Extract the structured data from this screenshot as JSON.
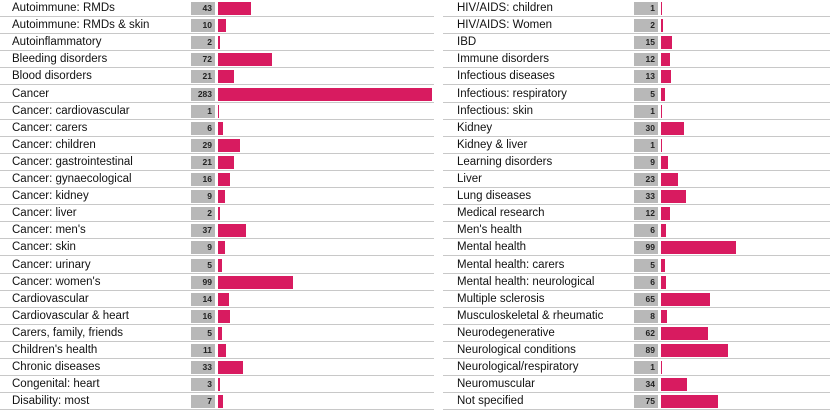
{
  "chart_data": {
    "type": "bar",
    "orientation": "horizontal",
    "colors": {
      "bar": "#d81b60",
      "count_box": "#b8b8b8"
    },
    "xlim": [
      0,
      283
    ],
    "panels": [
      {
        "categories": [
          "Autoimmune: RMDs",
          "Autoimmune: RMDs & skin",
          "Autoinflammatory",
          "Bleeding disorders",
          "Blood disorders",
          "Cancer",
          "Cancer: cardiovascular",
          "Cancer: carers",
          "Cancer: children",
          "Cancer: gastrointestinal",
          "Cancer: gynaecological",
          "Cancer: kidney",
          "Cancer: liver",
          "Cancer: men's",
          "Cancer: skin",
          "Cancer: urinary",
          "Cancer: women's",
          "Cardiovascular",
          "Cardiovascular & heart",
          "Carers, family, friends",
          "Children's health",
          "Chronic diseases",
          "Congenital: heart",
          "Disability: most"
        ],
        "values": [
          43,
          10,
          2,
          72,
          21,
          283,
          1,
          6,
          29,
          21,
          16,
          9,
          2,
          37,
          9,
          5,
          99,
          14,
          16,
          5,
          11,
          33,
          3,
          7
        ]
      },
      {
        "categories": [
          "HIV/AIDS: children",
          "HIV/AIDS: Women",
          "IBD",
          "Immune disorders",
          "Infectious diseases",
          "Infectious: respiratory",
          "Infectious: skin",
          "Kidney",
          "Kidney & liver",
          "Learning disorders",
          "Liver",
          "Lung diseases",
          "Medical research",
          "Men's health",
          "Mental health",
          "Mental health: carers",
          "Mental health: neurological",
          "Multiple sclerosis",
          "Musculoskeletal & rheumatic",
          "Neurodegenerative",
          "Neurological conditions",
          "Neurological/respiratory",
          "Neuromuscular",
          "Not specified"
        ],
        "values": [
          1,
          2,
          15,
          12,
          13,
          5,
          1,
          30,
          1,
          9,
          23,
          33,
          12,
          6,
          99,
          5,
          6,
          65,
          8,
          62,
          89,
          1,
          34,
          75
        ]
      }
    ]
  }
}
